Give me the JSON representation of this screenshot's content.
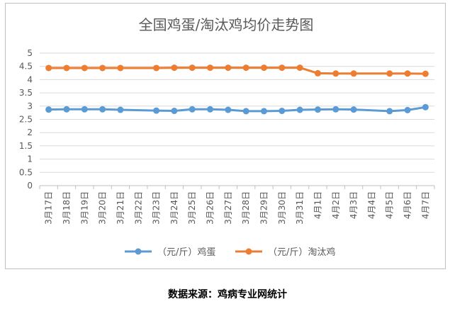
{
  "chart_data": {
    "type": "line",
    "title": "全国鸡蛋/淘汰鸡均价走势图",
    "xlabel": "",
    "ylabel": "",
    "categories": [
      "3月17日",
      "3月18日",
      "3月19日",
      "3月20日",
      "3月21日",
      "3月22日",
      "3月23日",
      "3月24日",
      "3月25日",
      "3月26日",
      "3月27日",
      "3月28日",
      "3月29日",
      "3月30日",
      "3月31日",
      "4月1日",
      "4月2日",
      "4月3日",
      "4月4日",
      "4月5日",
      "4月6日",
      "4月7日"
    ],
    "ylim": [
      0,
      5
    ],
    "yticks": [
      "0",
      "0.5",
      "1",
      "1.5",
      "2",
      "2.5",
      "3",
      "3.5",
      "4",
      "4.5",
      "5"
    ],
    "grid": true,
    "legend_position": "bottom",
    "series": [
      {
        "name": "（元/斤）鸡蛋",
        "color": "#5b9bd5",
        "values": [
          2.87,
          2.88,
          2.88,
          2.88,
          2.86,
          null,
          2.83,
          2.82,
          2.88,
          2.88,
          2.86,
          2.81,
          2.81,
          2.82,
          2.86,
          2.87,
          2.88,
          2.87,
          null,
          2.81,
          2.85,
          2.96
        ]
      },
      {
        "name": "（元/斤）淘汰鸡",
        "color": "#ed7d31",
        "values": [
          4.44,
          4.44,
          4.44,
          4.44,
          4.44,
          null,
          4.44,
          4.45,
          4.45,
          4.45,
          4.45,
          4.45,
          4.45,
          4.45,
          4.45,
          4.24,
          4.23,
          4.23,
          null,
          4.23,
          4.23,
          4.22
        ]
      }
    ]
  },
  "footer": {
    "source": "数据来源：鸡病专业网统计"
  }
}
